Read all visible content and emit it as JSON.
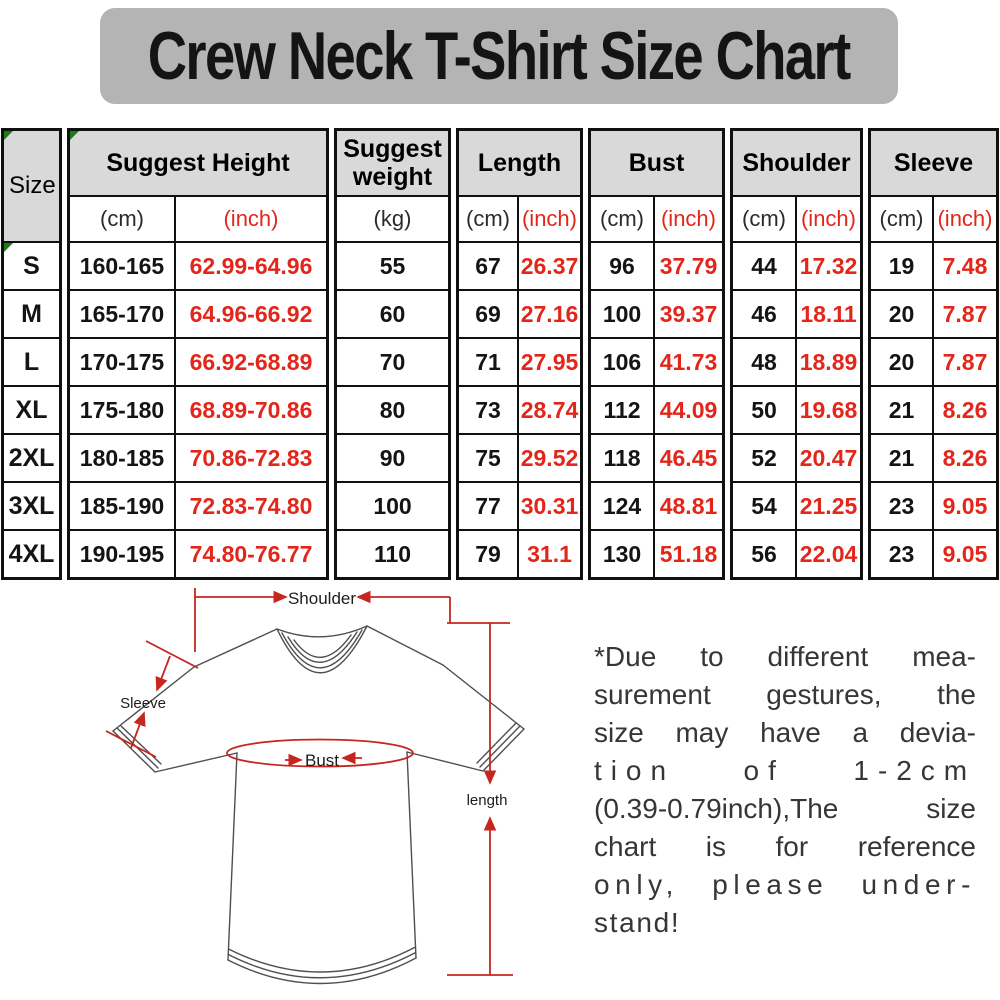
{
  "title": "Crew Neck T-Shirt Size Chart",
  "colors": {
    "accent_red": "#e2261a",
    "diagram_red": "#c5261f",
    "header_gray": "#d9d9d9",
    "title_gray": "#b4b4b4",
    "marker_green": "#1f7a1f"
  },
  "table": {
    "size_header": "Size",
    "groups": [
      {
        "label": "Suggest Height",
        "units": [
          "(cm)",
          "(inch)"
        ]
      },
      {
        "label": "Suggest weight",
        "units": [
          "(kg)"
        ]
      },
      {
        "label": "Length",
        "units": [
          "(cm)",
          "(inch)"
        ]
      },
      {
        "label": "Bust",
        "units": [
          "(cm)",
          "(inch)"
        ]
      },
      {
        "label": "Shoulder",
        "units": [
          "(cm)",
          "(inch)"
        ]
      },
      {
        "label": "Sleeve",
        "units": [
          "(cm)",
          "(inch)"
        ]
      }
    ],
    "rows": [
      {
        "size": "S",
        "values": [
          "160-165",
          "62.99-64.96",
          "55",
          "67",
          "26.37",
          "96",
          "37.79",
          "44",
          "17.32",
          "19",
          "7.48"
        ]
      },
      {
        "size": "M",
        "values": [
          "165-170",
          "64.96-66.92",
          "60",
          "69",
          "27.16",
          "100",
          "39.37",
          "46",
          "18.11",
          "20",
          "7.87"
        ]
      },
      {
        "size": "L",
        "values": [
          "170-175",
          "66.92-68.89",
          "70",
          "71",
          "27.95",
          "106",
          "41.73",
          "48",
          "18.89",
          "20",
          "7.87"
        ]
      },
      {
        "size": "XL",
        "values": [
          "175-180",
          "68.89-70.86",
          "80",
          "73",
          "28.74",
          "112",
          "44.09",
          "50",
          "19.68",
          "21",
          "8.26"
        ]
      },
      {
        "size": "2XL",
        "values": [
          "180-185",
          "70.86-72.83",
          "90",
          "75",
          "29.52",
          "118",
          "46.45",
          "52",
          "20.47",
          "21",
          "8.26"
        ]
      },
      {
        "size": "3XL",
        "values": [
          "185-190",
          "72.83-74.80",
          "100",
          "77",
          "30.31",
          "124",
          "48.81",
          "54",
          "21.25",
          "23",
          "9.05"
        ]
      },
      {
        "size": "4XL",
        "values": [
          "190-195",
          "74.80-76.77",
          "110",
          "79",
          "31.1",
          "130",
          "51.18",
          "56",
          "22.04",
          "23",
          "9.05"
        ]
      }
    ]
  },
  "diagram": {
    "labels": {
      "shoulder": "Shoulder",
      "sleeve": "Sleeve",
      "bust": "Bust",
      "length": "length"
    }
  },
  "note": {
    "lines": [
      "*Due to different mea-",
      "surement gestures, the",
      "size may have a devia-",
      "tion of 1-2cm",
      "(0.39-0.79inch),The size",
      "chart is for reference",
      "only, please under-",
      "stand!"
    ]
  }
}
